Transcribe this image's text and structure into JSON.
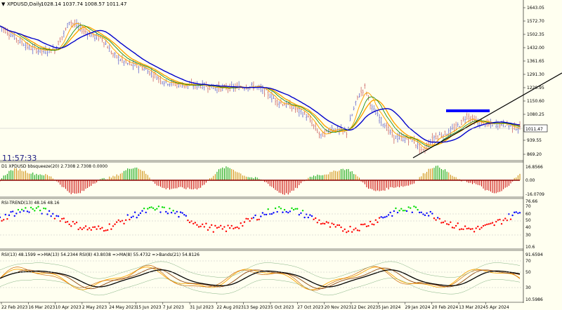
{
  "header": {
    "collapse_icon": "triangle-down-icon",
    "title": "XPDUSD,Daily",
    "ohlc": "1028.14 1037.74 1008.57 1011.47"
  },
  "price_axis": {
    "labels": [
      "1643.05",
      "1572.70",
      "1502.35",
      "1432.00",
      "1361.65",
      "1291.30",
      "1220.95",
      "1150.60",
      "1080.25",
      "1011.47",
      "939.55",
      "869.20"
    ],
    "current": "1011.47"
  },
  "clock": "11:57:33",
  "panels": {
    "bbsqueeze": {
      "title": "D1 XPDUSD bbsqueeze(20) 2.7308 2.7308 0.0000",
      "axis": [
        "16.8566",
        "0.00",
        "-16.0709"
      ]
    },
    "rsi_trend": {
      "title": "RSI-TREND(13) 48.16 48.16",
      "axis": [
        "76.66",
        "70",
        "60",
        "50",
        "40",
        "30",
        "10.6"
      ]
    },
    "rsi": {
      "title": "RSI(13) 48.1599  =>MA(13) 54.2344  RSI(8) 43.8038  =>MA(8) 55.4732  =>Bands(21) 54.8126",
      "axis": [
        "91.6594",
        "70",
        "50",
        "30",
        "10.5986"
      ]
    }
  },
  "time_axis": [
    "22 Feb 2023",
    "16 Mar 2023",
    "10 Apr 2023",
    "2 May 2023",
    "24 May 2023",
    "15 Jun 2023",
    "7 Jul 2023",
    "31 Jul 2023",
    "22 Aug 2023",
    "13 Sep 2023",
    "5 Oct 2023",
    "27 Oct 2023",
    "20 Nov 2023",
    "12 Dec 2023",
    "5 Jan 2024",
    "29 Jan 2024",
    "20 Feb 2024",
    "13 Mar 2024",
    "5 Apr 2024"
  ],
  "colors": {
    "background": "#fffff0",
    "bull": "#6666cc",
    "bear": "#cc6666",
    "ma_fast": "#ffa500",
    "ma_green": "#008000",
    "ma_blue": "#0000cc",
    "hist_up": "#00a000",
    "hist_down": "#cc0000"
  },
  "price_series": {
    "y_range": [
      840,
      1680
    ],
    "x_range": [
      0,
      285
    ],
    "anchors": [
      [
        0,
        1580
      ],
      [
        8,
        1520
      ],
      [
        16,
        1460
      ],
      [
        24,
        1440
      ],
      [
        30,
        1450
      ],
      [
        36,
        1560
      ],
      [
        38,
        1610
      ],
      [
        44,
        1570
      ],
      [
        50,
        1530
      ],
      [
        56,
        1510
      ],
      [
        62,
        1420
      ],
      [
        70,
        1370
      ],
      [
        78,
        1350
      ],
      [
        90,
        1270
      ],
      [
        100,
        1250
      ],
      [
        110,
        1250
      ],
      [
        120,
        1235
      ],
      [
        132,
        1240
      ],
      [
        140,
        1245
      ],
      [
        146,
        1210
      ],
      [
        152,
        1160
      ],
      [
        160,
        1130
      ],
      [
        168,
        1080
      ],
      [
        176,
        965
      ],
      [
        182,
        1010
      ],
      [
        190,
        985
      ],
      [
        196,
        1180
      ],
      [
        200,
        1240
      ],
      [
        204,
        1120
      ],
      [
        210,
        1040
      ],
      [
        216,
        960
      ],
      [
        226,
        945
      ],
      [
        232,
        880
      ],
      [
        238,
        960
      ],
      [
        246,
        985
      ],
      [
        252,
        1030
      ],
      [
        256,
        1080
      ],
      [
        262,
        1040
      ],
      [
        268,
        1030
      ],
      [
        276,
        1035
      ],
      [
        282,
        1015
      ],
      [
        285,
        1011
      ]
    ]
  },
  "drawings": {
    "trendline": {
      "from": [
        235,
        880
      ],
      "to": [
        320,
        1300
      ]
    },
    "resistance": {
      "from": [
        254,
        1105
      ],
      "to": [
        278,
        1105
      ]
    }
  }
}
